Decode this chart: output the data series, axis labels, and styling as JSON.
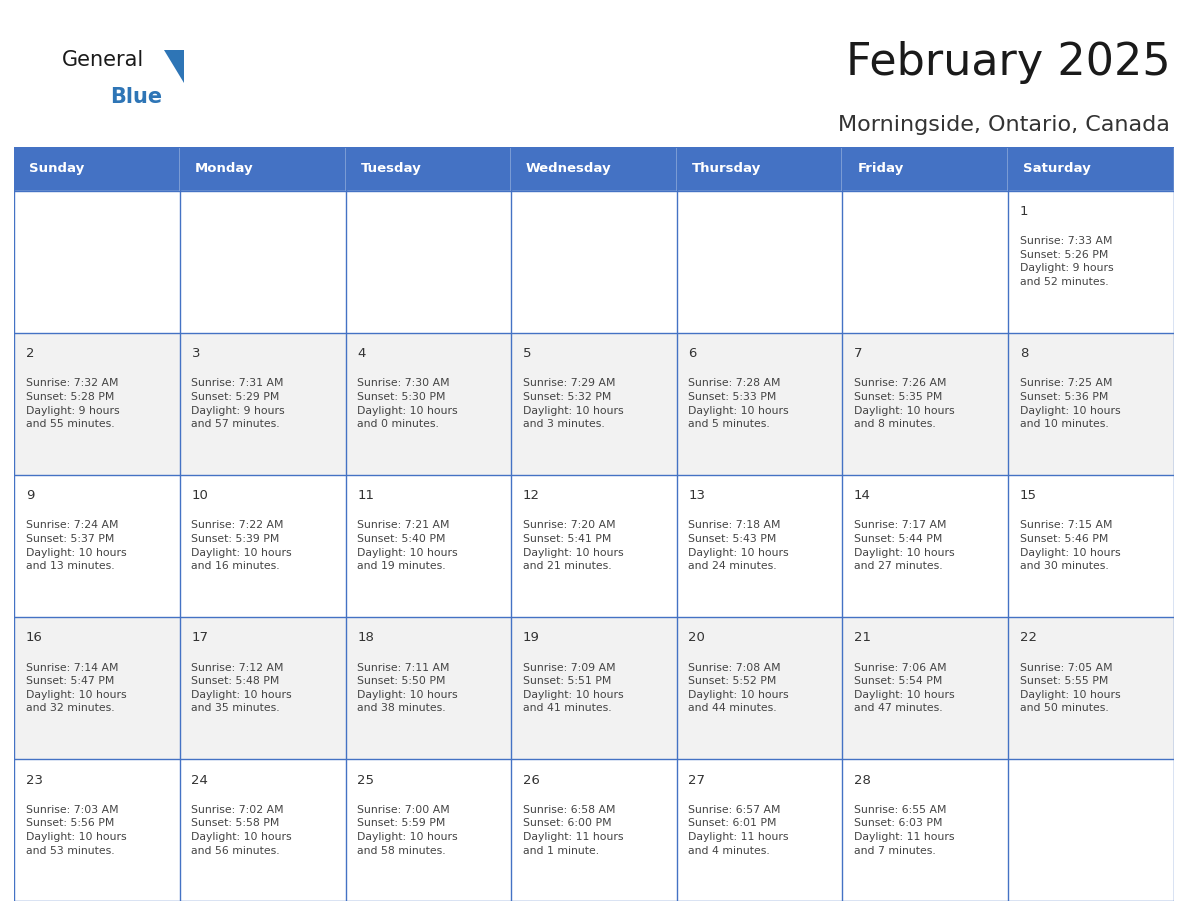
{
  "title": "February 2025",
  "subtitle": "Morningside, Ontario, Canada",
  "header_bg_color": "#4472C4",
  "header_text_color": "#FFFFFF",
  "cell_bg_row0": "#FFFFFF",
  "cell_bg_row1": "#F2F2F2",
  "cell_bg_row2": "#FFFFFF",
  "cell_bg_row3": "#F2F2F2",
  "cell_bg_row4": "#FFFFFF",
  "border_color": "#4472C4",
  "day_headers": [
    "Sunday",
    "Monday",
    "Tuesday",
    "Wednesday",
    "Thursday",
    "Friday",
    "Saturday"
  ],
  "title_color": "#1a1a1a",
  "subtitle_color": "#333333",
  "day_num_color": "#333333",
  "info_color": "#444444",
  "days": [
    {
      "date": 1,
      "col": 6,
      "row": 0,
      "sunrise": "7:33 AM",
      "sunset": "5:26 PM",
      "daylight": "9 hours\nand 52 minutes."
    },
    {
      "date": 2,
      "col": 0,
      "row": 1,
      "sunrise": "7:32 AM",
      "sunset": "5:28 PM",
      "daylight": "9 hours\nand 55 minutes."
    },
    {
      "date": 3,
      "col": 1,
      "row": 1,
      "sunrise": "7:31 AM",
      "sunset": "5:29 PM",
      "daylight": "9 hours\nand 57 minutes."
    },
    {
      "date": 4,
      "col": 2,
      "row": 1,
      "sunrise": "7:30 AM",
      "sunset": "5:30 PM",
      "daylight": "10 hours\nand 0 minutes."
    },
    {
      "date": 5,
      "col": 3,
      "row": 1,
      "sunrise": "7:29 AM",
      "sunset": "5:32 PM",
      "daylight": "10 hours\nand 3 minutes."
    },
    {
      "date": 6,
      "col": 4,
      "row": 1,
      "sunrise": "7:28 AM",
      "sunset": "5:33 PM",
      "daylight": "10 hours\nand 5 minutes."
    },
    {
      "date": 7,
      "col": 5,
      "row": 1,
      "sunrise": "7:26 AM",
      "sunset": "5:35 PM",
      "daylight": "10 hours\nand 8 minutes."
    },
    {
      "date": 8,
      "col": 6,
      "row": 1,
      "sunrise": "7:25 AM",
      "sunset": "5:36 PM",
      "daylight": "10 hours\nand 10 minutes."
    },
    {
      "date": 9,
      "col": 0,
      "row": 2,
      "sunrise": "7:24 AM",
      "sunset": "5:37 PM",
      "daylight": "10 hours\nand 13 minutes."
    },
    {
      "date": 10,
      "col": 1,
      "row": 2,
      "sunrise": "7:22 AM",
      "sunset": "5:39 PM",
      "daylight": "10 hours\nand 16 minutes."
    },
    {
      "date": 11,
      "col": 2,
      "row": 2,
      "sunrise": "7:21 AM",
      "sunset": "5:40 PM",
      "daylight": "10 hours\nand 19 minutes."
    },
    {
      "date": 12,
      "col": 3,
      "row": 2,
      "sunrise": "7:20 AM",
      "sunset": "5:41 PM",
      "daylight": "10 hours\nand 21 minutes."
    },
    {
      "date": 13,
      "col": 4,
      "row": 2,
      "sunrise": "7:18 AM",
      "sunset": "5:43 PM",
      "daylight": "10 hours\nand 24 minutes."
    },
    {
      "date": 14,
      "col": 5,
      "row": 2,
      "sunrise": "7:17 AM",
      "sunset": "5:44 PM",
      "daylight": "10 hours\nand 27 minutes."
    },
    {
      "date": 15,
      "col": 6,
      "row": 2,
      "sunrise": "7:15 AM",
      "sunset": "5:46 PM",
      "daylight": "10 hours\nand 30 minutes."
    },
    {
      "date": 16,
      "col": 0,
      "row": 3,
      "sunrise": "7:14 AM",
      "sunset": "5:47 PM",
      "daylight": "10 hours\nand 32 minutes."
    },
    {
      "date": 17,
      "col": 1,
      "row": 3,
      "sunrise": "7:12 AM",
      "sunset": "5:48 PM",
      "daylight": "10 hours\nand 35 minutes."
    },
    {
      "date": 18,
      "col": 2,
      "row": 3,
      "sunrise": "7:11 AM",
      "sunset": "5:50 PM",
      "daylight": "10 hours\nand 38 minutes."
    },
    {
      "date": 19,
      "col": 3,
      "row": 3,
      "sunrise": "7:09 AM",
      "sunset": "5:51 PM",
      "daylight": "10 hours\nand 41 minutes."
    },
    {
      "date": 20,
      "col": 4,
      "row": 3,
      "sunrise": "7:08 AM",
      "sunset": "5:52 PM",
      "daylight": "10 hours\nand 44 minutes."
    },
    {
      "date": 21,
      "col": 5,
      "row": 3,
      "sunrise": "7:06 AM",
      "sunset": "5:54 PM",
      "daylight": "10 hours\nand 47 minutes."
    },
    {
      "date": 22,
      "col": 6,
      "row": 3,
      "sunrise": "7:05 AM",
      "sunset": "5:55 PM",
      "daylight": "10 hours\nand 50 minutes."
    },
    {
      "date": 23,
      "col": 0,
      "row": 4,
      "sunrise": "7:03 AM",
      "sunset": "5:56 PM",
      "daylight": "10 hours\nand 53 minutes."
    },
    {
      "date": 24,
      "col": 1,
      "row": 4,
      "sunrise": "7:02 AM",
      "sunset": "5:58 PM",
      "daylight": "10 hours\nand 56 minutes."
    },
    {
      "date": 25,
      "col": 2,
      "row": 4,
      "sunrise": "7:00 AM",
      "sunset": "5:59 PM",
      "daylight": "10 hours\nand 58 minutes."
    },
    {
      "date": 26,
      "col": 3,
      "row": 4,
      "sunrise": "6:58 AM",
      "sunset": "6:00 PM",
      "daylight": "11 hours\nand 1 minute."
    },
    {
      "date": 27,
      "col": 4,
      "row": 4,
      "sunrise": "6:57 AM",
      "sunset": "6:01 PM",
      "daylight": "11 hours\nand 4 minutes."
    },
    {
      "date": 28,
      "col": 5,
      "row": 4,
      "sunrise": "6:55 AM",
      "sunset": "6:03 PM",
      "daylight": "11 hours\nand 7 minutes."
    }
  ],
  "num_rows": 5,
  "logo_triangle_color": "#2E75B6",
  "logo_blue_color": "#2E75B6",
  "logo_general_color": "#1a1a1a"
}
